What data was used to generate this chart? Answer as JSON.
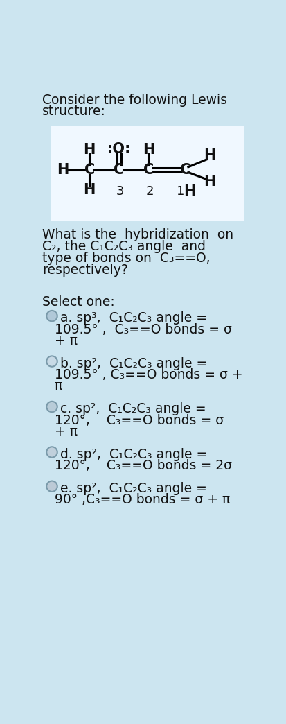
{
  "bg_color": "#cce5f0",
  "box_color": "#f0f8ff",
  "text_color": "#1a1a1a",
  "title_line1": "Consider the following Lewis",
  "title_line2": "structure:",
  "question_lines": [
    "What is the  hybridization  on",
    "C₂, the C₁C₂C₃ angle  and",
    "type of bonds on  C₃==O,",
    "respectively?"
  ],
  "select_one": "Select one:",
  "options": [
    {
      "label": "a",
      "lines": [
        "a. sp³,  C₁C₂C₃ angle =",
        "109.5° ,  C₃==O bonds = σ",
        "+ π"
      ],
      "circle_fill": "#b0c8d8"
    },
    {
      "label": "b",
      "lines": [
        "b. sp²,  C₁C₂C₃ angle =",
        "109.5° , C₃==O bonds = σ +",
        "π"
      ],
      "circle_fill": "#c8dae6"
    },
    {
      "label": "c",
      "lines": [
        "c. sp²,  C₁C₂C₃ angle =",
        "120°,    C₃==O bonds = σ",
        "+ π"
      ],
      "circle_fill": "#b8ccd8"
    },
    {
      "label": "d",
      "lines": [
        "d. sp²,  C₁C₂C₃ angle =",
        "120°,    C₃==O bonds = 2σ"
      ],
      "circle_fill": "#c0d0dc"
    },
    {
      "label": "e",
      "lines": [
        "e. sp²,  C₁C₂C₃ angle =",
        "90° ,C₃==O bonds = σ + π"
      ],
      "circle_fill": "#bccad6"
    }
  ]
}
